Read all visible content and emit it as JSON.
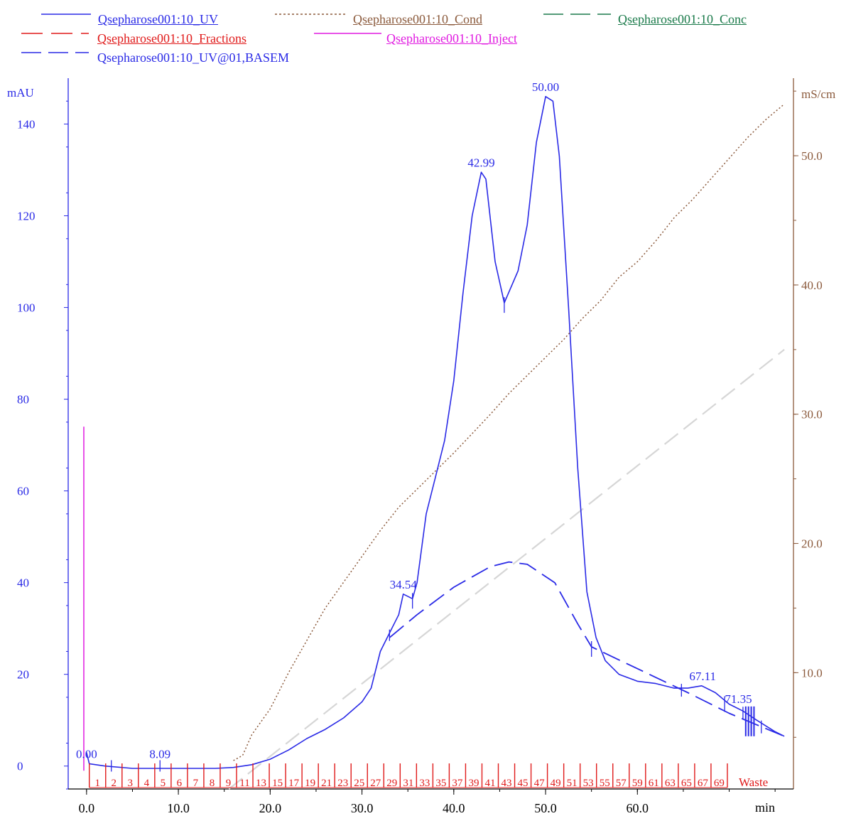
{
  "legend": {
    "uv": "Qsepharose001:10_UV",
    "cond": "Qsepharose001:10_Cond",
    "conc": "Qsepharose001:10_Conc",
    "fractions": "Qsepharose001:10_Fractions",
    "inject": "Qsepharose001:10_Inject",
    "basem": "Qsepharose001:10_UV@01,BASEM"
  },
  "colors": {
    "uv": "#2a2ae6",
    "cond": "#8b5a3c",
    "conc": "#1a7a4a",
    "fractions": "#e01a1a",
    "inject": "#e01ae0",
    "basem": "#2a2ae6",
    "conc_line": "#d6d6d6"
  },
  "chart_data": {
    "type": "line",
    "xlabel": "min",
    "ylabel_left": "mAU",
    "ylabel_right": "mS/cm",
    "xlim": [
      -2,
      77
    ],
    "ylim_left": [
      -5,
      150
    ],
    "ylim_right": [
      1,
      56
    ],
    "x_ticks": [
      "0.0",
      "10.0",
      "20.0",
      "30.0",
      "40.0",
      "50.0",
      "60.0"
    ],
    "y_left_ticks": [
      "0",
      "20",
      "40",
      "60",
      "80",
      "100",
      "120",
      "140"
    ],
    "y_right_ticks": [
      "10.0",
      "20.0",
      "30.0",
      "40.0",
      "50.0"
    ],
    "series": [
      {
        "name": "Qsepharose001:10_UV",
        "axis": "left",
        "points": [
          [
            0,
            3
          ],
          [
            0.3,
            0.5
          ],
          [
            2,
            0
          ],
          [
            5,
            -0.5
          ],
          [
            8,
            -0.5
          ],
          [
            10,
            -0.5
          ],
          [
            12,
            -0.5
          ],
          [
            14,
            -0.5
          ],
          [
            16,
            -0.3
          ],
          [
            18,
            0.3
          ],
          [
            20,
            1.5
          ],
          [
            22,
            3.5
          ],
          [
            24,
            6
          ],
          [
            26,
            8
          ],
          [
            28,
            10.5
          ],
          [
            30,
            14
          ],
          [
            31,
            17
          ],
          [
            32,
            25
          ],
          [
            33,
            29
          ],
          [
            34,
            33
          ],
          [
            34.5,
            37.5
          ],
          [
            35.5,
            36.5
          ],
          [
            36,
            40
          ],
          [
            37,
            55
          ],
          [
            38,
            63
          ],
          [
            39,
            71
          ],
          [
            40,
            84
          ],
          [
            41,
            103
          ],
          [
            42,
            120
          ],
          [
            42.99,
            129.5
          ],
          [
            43.5,
            128
          ],
          [
            44.5,
            110
          ],
          [
            45.5,
            101
          ],
          [
            47,
            108
          ],
          [
            48,
            118
          ],
          [
            49,
            136
          ],
          [
            50,
            146
          ],
          [
            50.8,
            145
          ],
          [
            51.5,
            133
          ],
          [
            52.5,
            100
          ],
          [
            53.5,
            65
          ],
          [
            54.5,
            38
          ],
          [
            55.5,
            28
          ],
          [
            56.5,
            23
          ],
          [
            58,
            20
          ],
          [
            60,
            18.5
          ],
          [
            62,
            18
          ],
          [
            64,
            17
          ],
          [
            65.5,
            17
          ],
          [
            67,
            17.5
          ],
          [
            68.5,
            16
          ],
          [
            70,
            13.5
          ],
          [
            71.5,
            12
          ],
          [
            73,
            10
          ],
          [
            75,
            7.5
          ],
          [
            76,
            6.5
          ]
        ]
      },
      {
        "name": "Qsepharose001:10_Cond",
        "axis": "right",
        "points": [
          [
            16,
            3.2
          ],
          [
            17,
            3.6
          ],
          [
            18,
            5.2
          ],
          [
            20,
            7.2
          ],
          [
            22,
            10
          ],
          [
            24,
            12.5
          ],
          [
            26,
            15
          ],
          [
            28,
            17
          ],
          [
            30,
            19
          ],
          [
            32,
            21
          ],
          [
            34,
            22.8
          ],
          [
            36,
            24.2
          ],
          [
            38,
            25.6
          ],
          [
            40,
            27
          ],
          [
            42,
            28.5
          ],
          [
            44,
            30
          ],
          [
            46,
            31.6
          ],
          [
            48,
            33
          ],
          [
            50,
            34.4
          ],
          [
            52,
            35.8
          ],
          [
            54,
            37.4
          ],
          [
            56,
            38.8
          ],
          [
            58,
            40.6
          ],
          [
            60,
            41.8
          ],
          [
            62,
            43.4
          ],
          [
            64,
            45.2
          ],
          [
            66,
            46.6
          ],
          [
            68,
            48.2
          ],
          [
            70,
            49.8
          ],
          [
            72,
            51.4
          ],
          [
            74,
            52.8
          ],
          [
            76,
            54
          ]
        ]
      },
      {
        "name": "Qsepharose001:10_UV@01,BASEM",
        "axis": "left",
        "points": [
          [
            33,
            28
          ],
          [
            36,
            33
          ],
          [
            40,
            39
          ],
          [
            44,
            43.5
          ],
          [
            46,
            44.5
          ],
          [
            48,
            44
          ],
          [
            51,
            40
          ],
          [
            53.5,
            31
          ],
          [
            55,
            26
          ],
          [
            65.5,
            16
          ],
          [
            70,
            11.5
          ],
          [
            73,
            9
          ],
          [
            76,
            6.5
          ]
        ]
      },
      {
        "name": "Qsepharose001:10_Conc",
        "axis": "right",
        "points": [
          [
            15.5,
            1
          ],
          [
            76,
            35
          ]
        ]
      },
      {
        "name": "Qsepharose001:10_Inject",
        "axis": "left",
        "points": [
          [
            -0.3,
            -1
          ],
          [
            -0.3,
            74
          ]
        ]
      }
    ],
    "peak_labels": [
      {
        "x": 0,
        "y": 0.5,
        "label": "0.00"
      },
      {
        "x": 8,
        "y": 0.5,
        "label": "8.09"
      },
      {
        "x": 34.5,
        "y": 37.5,
        "label": "34.54"
      },
      {
        "x": 42.99,
        "y": 129.5,
        "label": "42.99"
      },
      {
        "x": 50,
        "y": 146,
        "label": "50.00"
      },
      {
        "x": 67.11,
        "y": 17.5,
        "label": "67.11"
      },
      {
        "x": 71,
        "y": 12.5,
        "label": "71.35"
      }
    ],
    "fractions": {
      "labels": [
        "1",
        "2",
        "3",
        "4",
        "5",
        "6",
        "7",
        "8",
        "9",
        "11",
        "13",
        "15",
        "17",
        "19",
        "21",
        "23",
        "25",
        "27",
        "29",
        "31",
        "33",
        "35",
        "37",
        "39",
        "41",
        "43",
        "45",
        "47",
        "49",
        "51",
        "53",
        "55",
        "57",
        "59",
        "61",
        "63",
        "65",
        "67",
        "69"
      ],
      "waste_label": "Waste"
    }
  }
}
